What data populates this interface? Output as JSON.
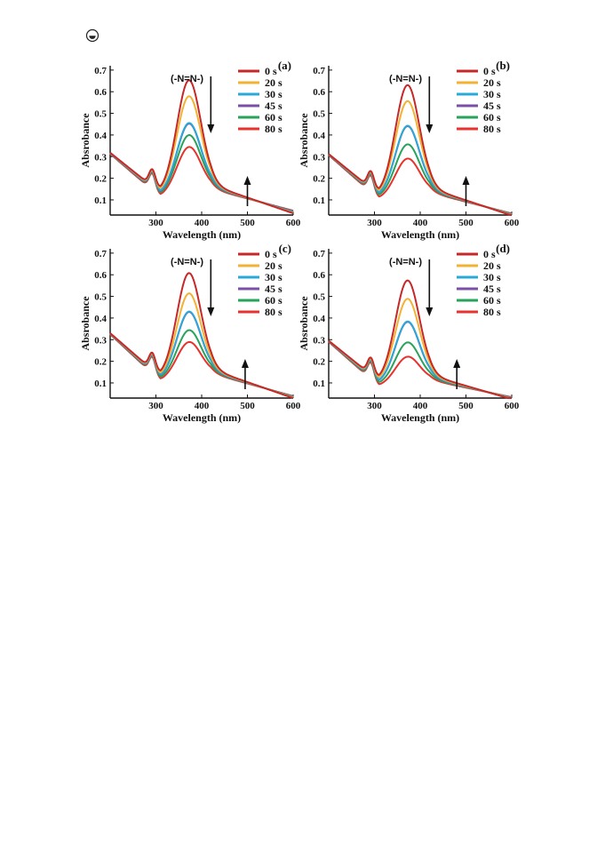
{
  "page": {
    "icon": "document-mark-icon"
  },
  "chart_data": [
    {
      "panel_label": "(a)",
      "type": "line",
      "xlabel": "Wavelength (nm)",
      "ylabel": "Absrobance",
      "xlim": [
        200,
        600
      ],
      "ylim": [
        0.03,
        0.72
      ],
      "xticks": [
        300,
        400,
        500,
        600
      ],
      "yticks": [
        0.1,
        0.2,
        0.3,
        0.4,
        0.5,
        0.6,
        0.7
      ],
      "grid": false,
      "legend_position": "top-right",
      "annotation": "(-N=N-)",
      "decrease_arrow_x": 420,
      "increase_arrow_x": 500,
      "series": [
        {
          "name": "0 s",
          "color": "#c62828",
          "base": 0.318,
          "peak": 0.63,
          "side": 0.238,
          "trough": 0.132,
          "tail": 0.038
        },
        {
          "name": "20 s",
          "color": "#f2b233",
          "base": 0.318,
          "peak": 0.56,
          "side": 0.235,
          "trough": 0.128,
          "tail": 0.04
        },
        {
          "name": "30 s",
          "color": "#2aa9d8",
          "base": 0.317,
          "peak": 0.44,
          "side": 0.232,
          "trough": 0.124,
          "tail": 0.043
        },
        {
          "name": "45 s",
          "color": "#7b4fa8",
          "base": 0.316,
          "peak": 0.44,
          "side": 0.23,
          "trough": 0.121,
          "tail": 0.045
        },
        {
          "name": "60 s",
          "color": "#27a35a",
          "base": 0.315,
          "peak": 0.39,
          "side": 0.227,
          "trough": 0.118,
          "tail": 0.047
        },
        {
          "name": "80 s",
          "color": "#e8322d",
          "base": 0.313,
          "peak": 0.34,
          "side": 0.222,
          "trough": 0.113,
          "tail": 0.05
        }
      ]
    },
    {
      "panel_label": "(b)",
      "type": "line",
      "xlabel": "Wavelength (nm)",
      "ylabel": "Absrobance",
      "xlim": [
        200,
        600
      ],
      "ylim": [
        0.03,
        0.72
      ],
      "xticks": [
        300,
        400,
        500,
        600
      ],
      "yticks": [
        0.1,
        0.2,
        0.3,
        0.4,
        0.5,
        0.6,
        0.7
      ],
      "grid": false,
      "legend_position": "top-right",
      "annotation": "(-N=N-)",
      "decrease_arrow_x": 420,
      "increase_arrow_x": 500,
      "series": [
        {
          "name": "0 s",
          "color": "#c62828",
          "base": 0.312,
          "peak": 0.62,
          "side": 0.212,
          "trough": 0.123,
          "tail": 0.028
        },
        {
          "name": "20 s",
          "color": "#f2b233",
          "base": 0.312,
          "peak": 0.55,
          "side": 0.209,
          "trough": 0.119,
          "tail": 0.03
        },
        {
          "name": "30 s",
          "color": "#2aa9d8",
          "base": 0.311,
          "peak": 0.44,
          "side": 0.205,
          "trough": 0.115,
          "tail": 0.032
        },
        {
          "name": "45 s",
          "color": "#7b4fa8",
          "base": 0.31,
          "peak": 0.44,
          "side": 0.203,
          "trough": 0.113,
          "tail": 0.033
        },
        {
          "name": "60 s",
          "color": "#27a35a",
          "base": 0.309,
          "peak": 0.36,
          "side": 0.199,
          "trough": 0.109,
          "tail": 0.035
        },
        {
          "name": "80 s",
          "color": "#e8322d",
          "base": 0.307,
          "peak": 0.3,
          "side": 0.194,
          "trough": 0.103,
          "tail": 0.037
        }
      ]
    },
    {
      "panel_label": "(c)",
      "type": "line",
      "xlabel": "Wavelength (nm)",
      "ylabel": "Absrobance",
      "xlim": [
        200,
        600
      ],
      "ylim": [
        0.03,
        0.72
      ],
      "xticks": [
        300,
        400,
        500,
        600
      ],
      "yticks": [
        0.1,
        0.2,
        0.3,
        0.4,
        0.5,
        0.6,
        0.7
      ],
      "grid": false,
      "legend_position": "top-right",
      "annotation": "(-N=N-)",
      "decrease_arrow_x": 420,
      "increase_arrow_x": 495,
      "series": [
        {
          "name": "0 s",
          "color": "#c62828",
          "base": 0.33,
          "peak": 0.59,
          "side": 0.228,
          "trough": 0.128,
          "tail": 0.03
        },
        {
          "name": "20 s",
          "color": "#f2b233",
          "base": 0.33,
          "peak": 0.5,
          "side": 0.225,
          "trough": 0.124,
          "tail": 0.032
        },
        {
          "name": "30 s",
          "color": "#2aa9d8",
          "base": 0.329,
          "peak": 0.42,
          "side": 0.221,
          "trough": 0.12,
          "tail": 0.034
        },
        {
          "name": "45 s",
          "color": "#7b4fa8",
          "base": 0.328,
          "peak": 0.42,
          "side": 0.219,
          "trough": 0.118,
          "tail": 0.035
        },
        {
          "name": "60 s",
          "color": "#27a35a",
          "base": 0.327,
          "peak": 0.34,
          "side": 0.215,
          "trough": 0.114,
          "tail": 0.037
        },
        {
          "name": "80 s",
          "color": "#e8322d",
          "base": 0.325,
          "peak": 0.29,
          "side": 0.21,
          "trough": 0.109,
          "tail": 0.039
        }
      ]
    },
    {
      "panel_label": "(d)",
      "type": "line",
      "xlabel": "Wavelength (nm)",
      "ylabel": "Absrobance",
      "xlim": [
        200,
        600
      ],
      "ylim": [
        0.03,
        0.72
      ],
      "xticks": [
        300,
        400,
        500,
        600
      ],
      "yticks": [
        0.1,
        0.2,
        0.3,
        0.4,
        0.5,
        0.6,
        0.7
      ],
      "grid": false,
      "legend_position": "top-right",
      "annotation": "(-N=N-)",
      "decrease_arrow_x": 420,
      "increase_arrow_x": 480,
      "series": [
        {
          "name": "0 s",
          "color": "#c62828",
          "base": 0.295,
          "peak": 0.58,
          "side": 0.188,
          "trough": 0.108,
          "tail": 0.025
        },
        {
          "name": "20 s",
          "color": "#f2b233",
          "base": 0.295,
          "peak": 0.5,
          "side": 0.184,
          "trough": 0.103,
          "tail": 0.027
        },
        {
          "name": "30 s",
          "color": "#2aa9d8",
          "base": 0.294,
          "peak": 0.4,
          "side": 0.18,
          "trough": 0.098,
          "tail": 0.029
        },
        {
          "name": "45 s",
          "color": "#7b4fa8",
          "base": 0.293,
          "peak": 0.4,
          "side": 0.178,
          "trough": 0.096,
          "tail": 0.03
        },
        {
          "name": "60 s",
          "color": "#27a35a",
          "base": 0.292,
          "peak": 0.31,
          "side": 0.173,
          "trough": 0.091,
          "tail": 0.032
        },
        {
          "name": "80 s",
          "color": "#e8322d",
          "base": 0.29,
          "peak": 0.25,
          "side": 0.167,
          "trough": 0.085,
          "tail": 0.034
        }
      ]
    }
  ]
}
